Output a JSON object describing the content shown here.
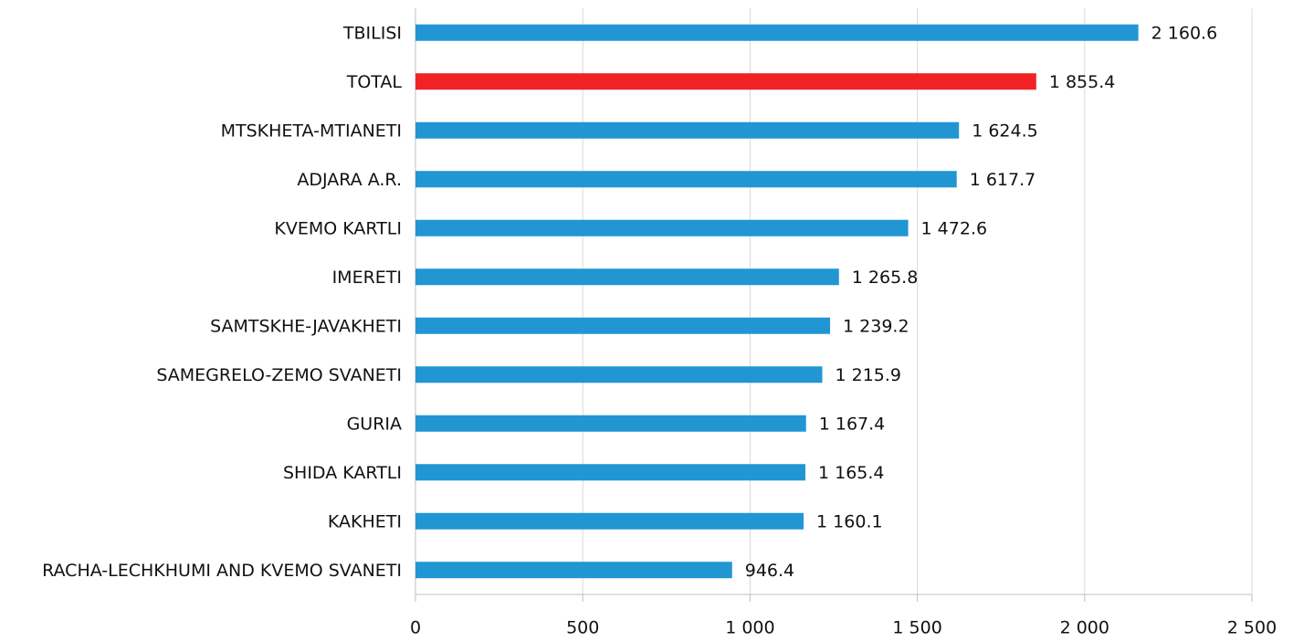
{
  "chart_data": {
    "type": "bar",
    "categories": [
      "TBILISI",
      "TOTAL",
      "MTSKHETA-MTIANETI",
      "ADJARA A.R.",
      "KVEMO KARTLI",
      "IMERETI",
      "SAMTSKHE-JAVAKHETI",
      "SAMEGRELO-ZEMO SVANETI",
      "GURIA",
      "SHIDA KARTLI",
      "KAKHETI",
      "RACHA-LECHKHUMI AND KVEMO SVANETI"
    ],
    "values": [
      2160.6,
      1855.4,
      1624.5,
      1617.7,
      1472.6,
      1265.8,
      1239.2,
      1215.9,
      1167.4,
      1165.4,
      1160.1,
      946.4
    ],
    "value_labels": [
      "2 160.6",
      "1 855.4",
      "1 624.5",
      "1 617.7",
      "1 472.6",
      "1 265.8",
      "1 239.2",
      "1 215.9",
      "1 167.4",
      "1 165.4",
      "1 160.1",
      "946.4"
    ],
    "colors": [
      "#2196d3",
      "#f02226",
      "#2196d3",
      "#2196d3",
      "#2196d3",
      "#2196d3",
      "#2196d3",
      "#2196d3",
      "#2196d3",
      "#2196d3",
      "#2196d3",
      "#2196d3"
    ],
    "xlim": [
      0,
      2500
    ],
    "xticks": [
      0,
      500,
      {
        "value": 1000,
        "label": "1 000"
      },
      {
        "value": 1500,
        "label": "1 500"
      },
      {
        "value": 2000,
        "label": "2 000"
      },
      {
        "value": 2500,
        "label": "2 500"
      }
    ],
    "grid": true
  }
}
